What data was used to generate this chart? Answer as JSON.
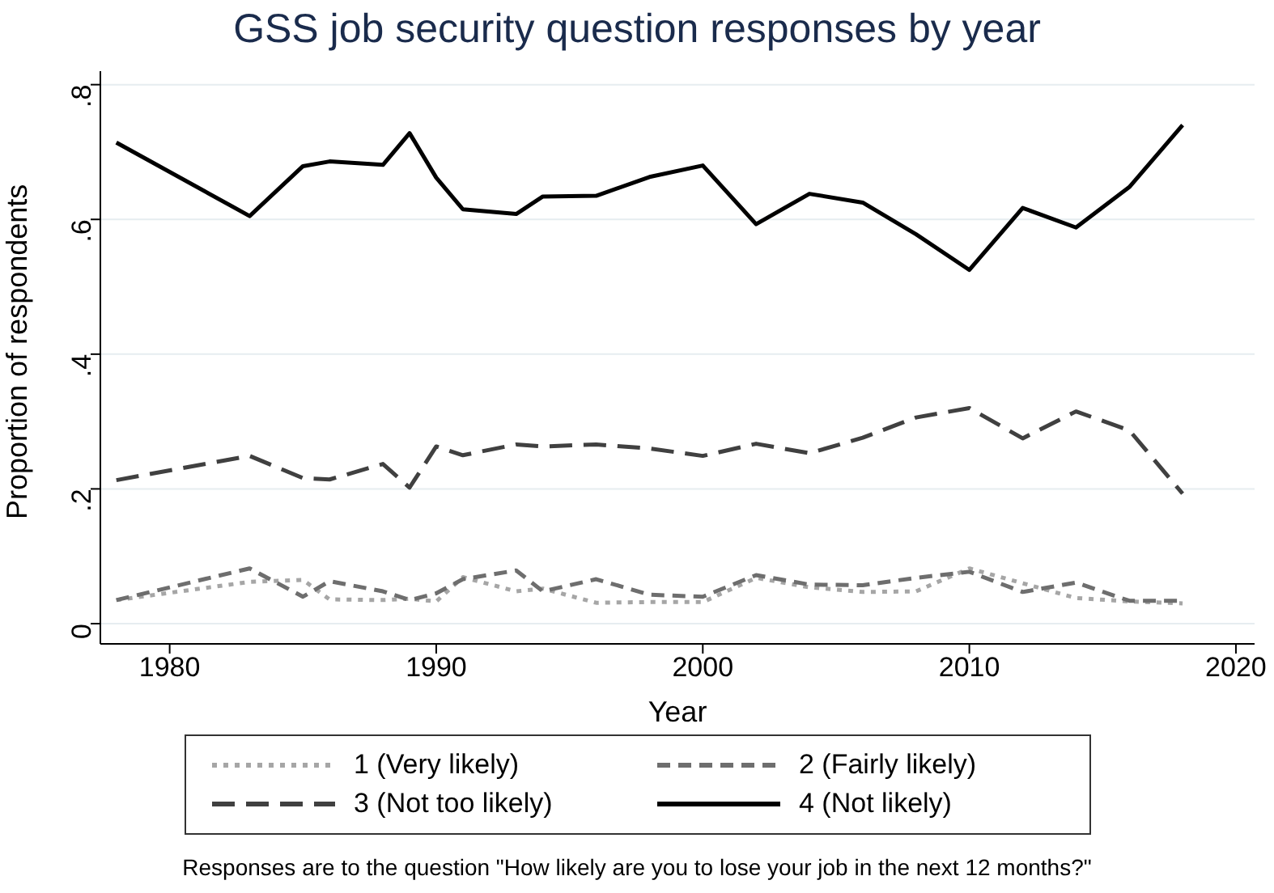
{
  "chart_data": {
    "type": "line",
    "title": "GSS job security question responses by year",
    "xlabel": "Year",
    "ylabel": "Proportion of respondents",
    "x": [
      1978,
      1983,
      1985,
      1986,
      1988,
      1989,
      1990,
      1991,
      1993,
      1994,
      1996,
      1998,
      2000,
      2002,
      2004,
      2006,
      2008,
      2010,
      2012,
      2014,
      2016,
      2018
    ],
    "series": [
      {
        "name": "1 (Very likely)",
        "color": "#a6a6a6",
        "line_style": "dotted",
        "values": [
          0.035,
          0.062,
          0.065,
          0.036,
          0.035,
          0.037,
          0.033,
          0.069,
          0.048,
          0.052,
          0.031,
          0.032,
          0.032,
          0.068,
          0.054,
          0.047,
          0.048,
          0.082,
          0.06,
          0.038,
          0.033,
          0.03
        ]
      },
      {
        "name": "2 (Fairly likely)",
        "color": "#6e6e6e",
        "line_style": "dashed",
        "values": [
          0.035,
          0.082,
          0.04,
          0.063,
          0.048,
          0.035,
          0.045,
          0.066,
          0.079,
          0.048,
          0.066,
          0.043,
          0.04,
          0.072,
          0.058,
          0.057,
          0.068,
          0.077,
          0.047,
          0.061,
          0.034,
          0.034
        ]
      },
      {
        "name": "3 (Not too likely)",
        "color": "#404040",
        "line_style": "dashed",
        "values": [
          0.213,
          0.249,
          0.216,
          0.214,
          0.237,
          0.202,
          0.263,
          0.25,
          0.266,
          0.263,
          0.266,
          0.26,
          0.249,
          0.267,
          0.253,
          0.276,
          0.306,
          0.32,
          0.275,
          0.315,
          0.287,
          0.193
        ]
      },
      {
        "name": "4 (Not likely)",
        "color": "#000000",
        "line_style": "solid",
        "values": [
          0.714,
          0.605,
          0.679,
          0.686,
          0.681,
          0.728,
          0.662,
          0.615,
          0.608,
          0.634,
          0.635,
          0.663,
          0.68,
          0.593,
          0.638,
          0.625,
          0.578,
          0.525,
          0.617,
          0.588,
          0.648,
          0.74
        ]
      }
    ],
    "xlim": [
      1977.4,
      2020.7
    ],
    "xticks": [
      1980,
      1990,
      2000,
      2010,
      2020
    ],
    "ylim": [
      -0.03,
      0.82
    ],
    "yticks": [
      {
        "value": 0,
        "label": "0"
      },
      {
        "value": 0.2,
        "label": ".2"
      },
      {
        "value": 0.4,
        "label": ".4"
      },
      {
        "value": 0.6,
        "label": ".6"
      },
      {
        "value": 0.8,
        "label": ".8"
      }
    ],
    "grid": "y",
    "legend": "bottom",
    "marker": "none",
    "annotations": [
      "Responses are to the question \"How likely are you to lose your job in the next 12 months?\""
    ]
  }
}
